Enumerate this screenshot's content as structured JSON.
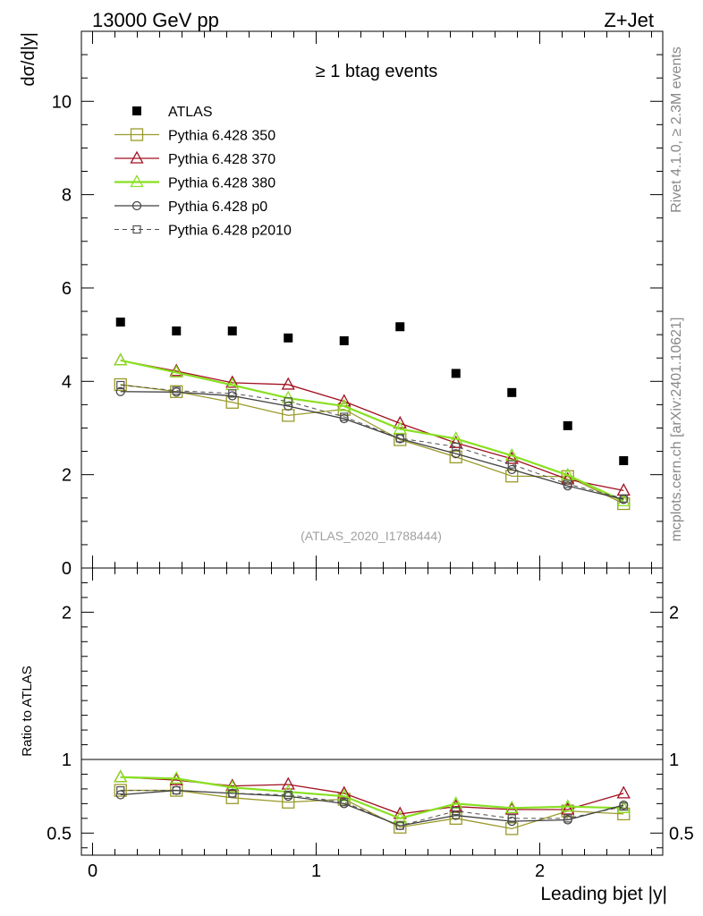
{
  "header": {
    "left": "13000 GeV pp",
    "right": "Z+Jet"
  },
  "side_labels": {
    "rivet": "Rivet 4.1.0, ≥ 2.3M events",
    "site": "mcplots.cern.ch [arXiv:2401.10621]"
  },
  "chart_data": {
    "type": "scatter",
    "title": "≥ 1 btag events",
    "watermark": "(ATLAS_2020_I1788444)",
    "xlabel": "Leading bjet |y|",
    "ylabel": "dσ/d|y|",
    "ratio_ylabel": "Ratio to ATLAS",
    "xlim": [
      -0.05,
      2.55
    ],
    "ylim": [
      0,
      11.5
    ],
    "ratio_ylim": [
      0.35,
      2.3
    ],
    "x_ticks": [
      "0",
      "1",
      "2"
    ],
    "y_ticks": [
      "0",
      "2",
      "4",
      "6",
      "8",
      "10"
    ],
    "ratio_ticks": [
      "0.5",
      "1",
      "2"
    ],
    "x": [
      0.125,
      0.375,
      0.625,
      0.875,
      1.125,
      1.375,
      1.625,
      1.875,
      2.125,
      2.375
    ],
    "series": [
      {
        "name": "ATLAS",
        "color": "#000000",
        "marker": "filled-square",
        "line": "none",
        "values": [
          5.27,
          5.08,
          5.08,
          4.93,
          4.87,
          5.17,
          4.17,
          3.76,
          3.05,
          2.3
        ],
        "ratio": [
          1,
          1,
          1,
          1,
          1,
          1,
          1,
          1,
          1,
          1
        ]
      },
      {
        "name": "Pythia 6.428 350",
        "color": "#9a9a2a",
        "marker": "open-square",
        "line": "solid",
        "values": [
          3.93,
          3.78,
          3.55,
          3.27,
          3.4,
          2.75,
          2.38,
          1.97,
          1.96,
          1.38
        ],
        "ratio": [
          0.79,
          0.79,
          0.74,
          0.71,
          0.73,
          0.54,
          0.6,
          0.53,
          0.65,
          0.63
        ]
      },
      {
        "name": "Pythia 6.428 370",
        "color": "#a01020",
        "marker": "open-triangle",
        "line": "solid",
        "values": [
          4.45,
          4.22,
          3.97,
          3.93,
          3.57,
          3.1,
          2.68,
          2.34,
          1.9,
          1.66
        ],
        "ratio": [
          0.88,
          0.86,
          0.82,
          0.83,
          0.77,
          0.63,
          0.68,
          0.66,
          0.66,
          0.77
        ]
      },
      {
        "name": "Pythia 6.428 380",
        "color": "#88e020",
        "marker": "open-triangle",
        "line": "solid-thick",
        "values": [
          4.45,
          4.19,
          3.92,
          3.64,
          3.47,
          2.98,
          2.77,
          2.41,
          1.99,
          1.43
        ],
        "ratio": [
          0.88,
          0.87,
          0.81,
          0.78,
          0.75,
          0.6,
          0.7,
          0.67,
          0.68,
          0.67
        ]
      },
      {
        "name": "Pythia 6.428 p0",
        "color": "#404040",
        "marker": "open-circle",
        "line": "solid",
        "values": [
          3.78,
          3.77,
          3.69,
          3.47,
          3.2,
          2.77,
          2.45,
          2.11,
          1.76,
          1.47
        ],
        "ratio": [
          0.76,
          0.79,
          0.77,
          0.75,
          0.7,
          0.55,
          0.62,
          0.58,
          0.59,
          0.69
        ]
      },
      {
        "name": "Pythia 6.428 p2010",
        "color": "#505050",
        "marker": "open-small-square",
        "line": "dashed",
        "values": [
          3.92,
          3.8,
          3.74,
          3.57,
          3.24,
          2.78,
          2.6,
          2.22,
          1.8,
          1.49
        ],
        "ratio": [
          0.79,
          0.79,
          0.77,
          0.76,
          0.71,
          0.55,
          0.65,
          0.6,
          0.6,
          0.68
        ]
      }
    ]
  }
}
